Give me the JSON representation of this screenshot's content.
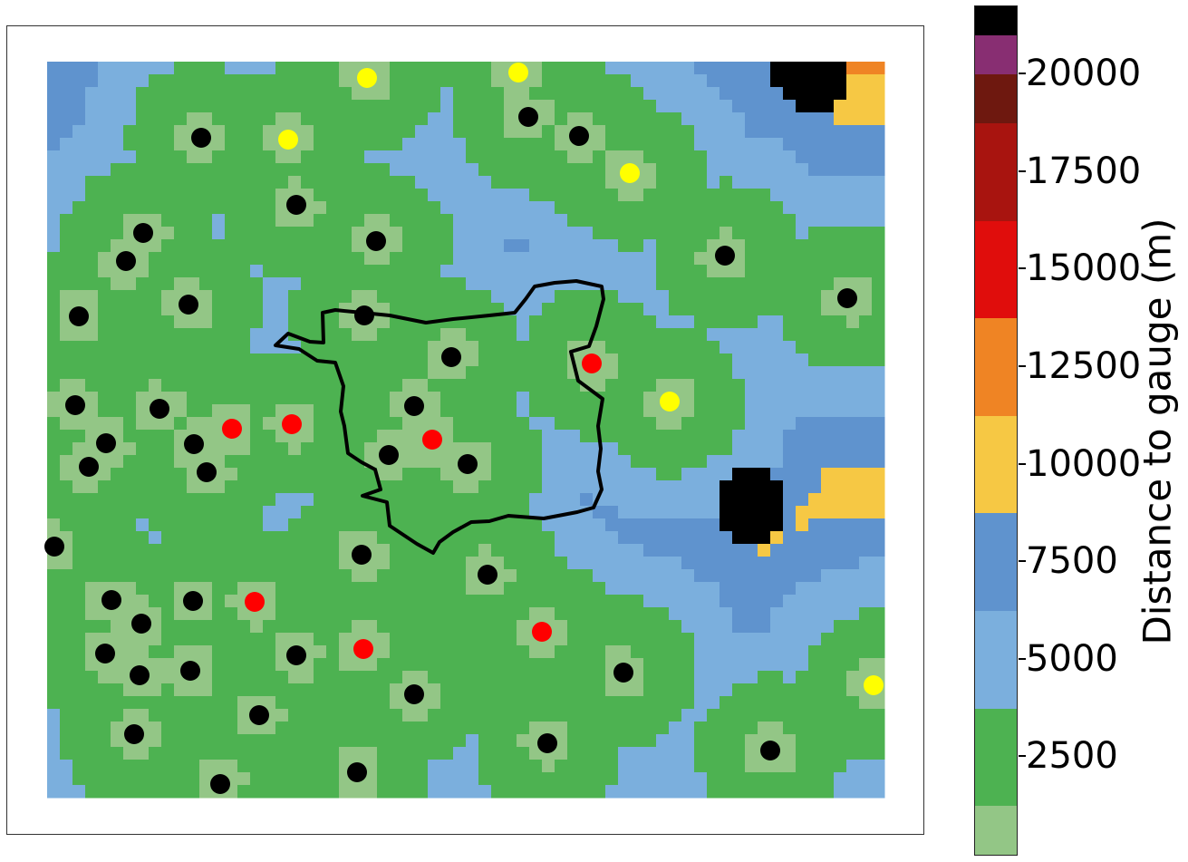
{
  "colorbar": {
    "label": "Distance to gauge (m)",
    "range": [
      0,
      21750
    ],
    "bins": [
      {
        "from": 0,
        "to": 1250,
        "color": "#93c686"
      },
      {
        "from": 1250,
        "to": 3750,
        "color": "#4db251"
      },
      {
        "from": 3750,
        "to": 6250,
        "color": "#7bafdd"
      },
      {
        "from": 6250,
        "to": 8750,
        "color": "#5f93ce"
      },
      {
        "from": 8750,
        "to": 11250,
        "color": "#f6c844"
      },
      {
        "from": 11250,
        "to": 13750,
        "color": "#ef8424"
      },
      {
        "from": 13750,
        "to": 16250,
        "color": "#e00d0c"
      },
      {
        "from": 16250,
        "to": 18750,
        "color": "#a8140f"
      },
      {
        "from": 18750,
        "to": 20000,
        "color": "#6e180f"
      },
      {
        "from": 20000,
        "to": 21000,
        "color": "#882e72"
      },
      {
        "from": 21000,
        "to": 21750,
        "color": "#000000"
      }
    ],
    "ticks": [
      {
        "value": 2500,
        "label": "2500"
      },
      {
        "value": 5000,
        "label": "5000"
      },
      {
        "value": 7500,
        "label": "7500"
      },
      {
        "value": 10000,
        "label": "10000"
      },
      {
        "value": 12500,
        "label": "12500"
      },
      {
        "value": 15000,
        "label": "15000"
      },
      {
        "value": 17500,
        "label": "17500"
      },
      {
        "value": 20000,
        "label": "20000"
      }
    ]
  },
  "gauges": {
    "black": [
      [
        222,
        152
      ],
      [
        583,
        129
      ],
      [
        639,
        150
      ],
      [
        327,
        226
      ],
      [
        158,
        257
      ],
      [
        139,
        288
      ],
      [
        415,
        266
      ],
      [
        800,
        282
      ],
      [
        935,
        329
      ],
      [
        87,
        349
      ],
      [
        208,
        336
      ],
      [
        402,
        348
      ],
      [
        498,
        394
      ],
      [
        83,
        447
      ],
      [
        176,
        451
      ],
      [
        457,
        448
      ],
      [
        117,
        489
      ],
      [
        214,
        490
      ],
      [
        98,
        515
      ],
      [
        228,
        521
      ],
      [
        429,
        502
      ],
      [
        516,
        512
      ],
      [
        60,
        603
      ],
      [
        399,
        612
      ],
      [
        538,
        634
      ],
      [
        123,
        662
      ],
      [
        213,
        663
      ],
      [
        156,
        688
      ],
      [
        116,
        721
      ],
      [
        327,
        723
      ],
      [
        154,
        745
      ],
      [
        210,
        740
      ],
      [
        688,
        742
      ],
      [
        457,
        766
      ],
      [
        286,
        789
      ],
      [
        148,
        810
      ],
      [
        604,
        820
      ],
      [
        850,
        828
      ],
      [
        394,
        852
      ],
      [
        243,
        865
      ]
    ],
    "yellow": [
      [
        405,
        86
      ],
      [
        572,
        80
      ],
      [
        318,
        154
      ],
      [
        695,
        191
      ],
      [
        739,
        443
      ],
      [
        964,
        756
      ]
    ],
    "red": [
      [
        653,
        401
      ],
      [
        256,
        473
      ],
      [
        322,
        468
      ],
      [
        477,
        485
      ],
      [
        281,
        664
      ],
      [
        401,
        716
      ],
      [
        598,
        697
      ]
    ]
  },
  "darkest_zones": [
    [
      830,
      560
    ],
    [
      895,
      85
    ]
  ],
  "catchment_outline": [
    [
      357,
      378
    ],
    [
      342,
      377
    ],
    [
      318,
      368
    ],
    [
      304,
      381
    ],
    [
      330,
      385
    ],
    [
      350,
      398
    ],
    [
      370,
      400
    ],
    [
      379,
      426
    ],
    [
      376,
      454
    ],
    [
      380,
      470
    ],
    [
      384,
      500
    ],
    [
      399,
      510
    ],
    [
      414,
      518
    ],
    [
      420,
      540
    ],
    [
      400,
      547
    ],
    [
      427,
      554
    ],
    [
      430,
      580
    ],
    [
      460,
      600
    ],
    [
      478,
      610
    ],
    [
      485,
      598
    ],
    [
      500,
      587
    ],
    [
      520,
      576
    ],
    [
      540,
      575
    ],
    [
      561,
      569
    ],
    [
      600,
      572
    ],
    [
      637,
      565
    ],
    [
      655,
      560
    ],
    [
      664,
      540
    ],
    [
      660,
      520
    ],
    [
      663,
      495
    ],
    [
      660,
      470
    ],
    [
      665,
      440
    ],
    [
      638,
      420
    ],
    [
      630,
      388
    ],
    [
      650,
      382
    ],
    [
      658,
      360
    ],
    [
      666,
      330
    ],
    [
      664,
      316
    ],
    [
      636,
      310
    ],
    [
      612,
      312
    ],
    [
      590,
      316
    ],
    [
      580,
      330
    ],
    [
      568,
      345
    ],
    [
      540,
      348
    ],
    [
      500,
      352
    ],
    [
      470,
      356
    ],
    [
      430,
      348
    ],
    [
      400,
      345
    ],
    [
      370,
      342
    ],
    [
      356,
      345
    ]
  ],
  "map_extent": {
    "x0": 52,
    "y0": 68,
    "x1": 972,
    "y1": 880,
    "cell": 16
  },
  "hotspots_m": {
    "distance_scale": 300
  }
}
